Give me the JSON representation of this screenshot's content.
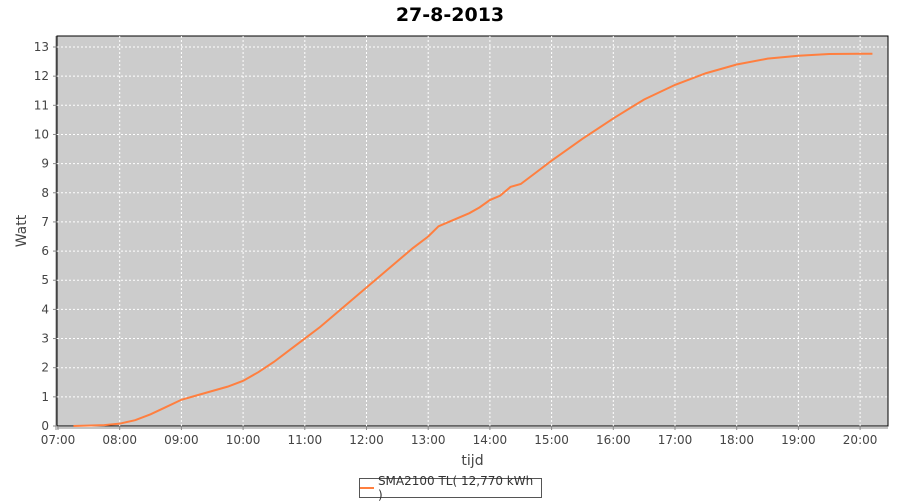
{
  "chart_data": {
    "type": "line",
    "title": "27-8-2013",
    "xlabel": "tijd",
    "ylabel": "Watt",
    "ylim": [
      0,
      13
    ],
    "xlim": [
      "07:00",
      "20:30"
    ],
    "x_ticks": [
      "07:00",
      "08:00",
      "09:00",
      "10:00",
      "11:00",
      "12:00",
      "13:00",
      "14:00",
      "15:00",
      "16:00",
      "17:00",
      "18:00",
      "19:00",
      "20:00"
    ],
    "y_ticks": [
      0,
      1,
      2,
      3,
      4,
      5,
      6,
      7,
      8,
      9,
      10,
      11,
      12,
      13
    ],
    "grid": true,
    "legend_placement": "bottom",
    "background": "#cccccc",
    "series": [
      {
        "name": "SMA2100 TL( 12,770 kWh )",
        "color": "#ff7f3f",
        "x": [
          "07:15",
          "07:45",
          "08:00",
          "08:15",
          "08:30",
          "08:45",
          "09:00",
          "09:15",
          "09:30",
          "09:45",
          "10:00",
          "10:15",
          "10:30",
          "10:45",
          "11:00",
          "11:15",
          "11:30",
          "11:45",
          "12:00",
          "12:15",
          "12:30",
          "12:45",
          "13:00",
          "13:10",
          "13:20",
          "13:40",
          "13:50",
          "14:00",
          "14:10",
          "14:20",
          "14:30",
          "14:45",
          "15:00",
          "15:30",
          "16:00",
          "16:30",
          "17:00",
          "17:30",
          "18:00",
          "18:30",
          "19:00",
          "19:30",
          "20:00",
          "20:12"
        ],
        "y": [
          0,
          0.03,
          0.08,
          0.2,
          0.4,
          0.65,
          0.9,
          1.05,
          1.2,
          1.35,
          1.55,
          1.85,
          2.2,
          2.6,
          3.0,
          3.4,
          3.85,
          4.3,
          4.75,
          5.2,
          5.65,
          6.1,
          6.5,
          6.85,
          7.0,
          7.3,
          7.5,
          7.75,
          7.9,
          8.2,
          8.3,
          8.7,
          9.1,
          9.85,
          10.55,
          11.2,
          11.7,
          12.1,
          12.4,
          12.6,
          12.7,
          12.76,
          12.77,
          12.77
        ]
      }
    ]
  }
}
